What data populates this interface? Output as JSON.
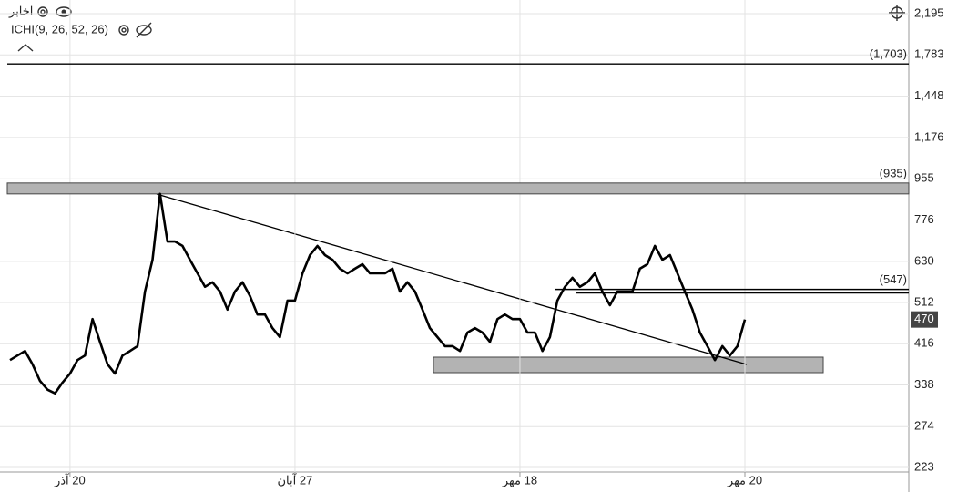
{
  "symbol": "اخابر",
  "indicator": "ICHI(9, 26, 52, 26)",
  "chart_data": {
    "type": "line",
    "log_scale": true,
    "grid": true,
    "categories": [
      null,
      null,
      null,
      null,
      null,
      null,
      null,
      null,
      "20 آذر",
      null,
      null,
      null,
      null,
      null,
      null,
      null,
      null,
      null,
      null,
      null,
      null,
      null,
      null,
      null,
      null,
      null,
      null,
      null,
      null,
      null,
      null,
      null,
      null,
      null,
      null,
      null,
      null,
      null,
      "27 آبان",
      null,
      null,
      null,
      null,
      null,
      null,
      null,
      null,
      null,
      null,
      null,
      null,
      null,
      null,
      null,
      null,
      null,
      null,
      null,
      null,
      null,
      null,
      null,
      null,
      null,
      null,
      null,
      null,
      null,
      "18 مهر",
      null,
      null,
      null,
      null,
      null,
      null,
      null,
      null,
      null,
      null,
      null,
      null,
      null,
      null,
      null,
      null,
      null,
      null,
      null,
      null,
      null,
      null,
      null,
      null,
      null,
      null,
      null,
      null,
      null,
      "20 مهر"
    ],
    "series": [
      {
        "color": "#000000",
        "values": [
          383,
          392,
          401,
          375,
          345,
          330,
          324,
          342,
          358,
          383,
          392,
          471,
          420,
          375,
          358,
          392,
          401,
          411,
          541,
          635,
          885,
          696,
          696,
          681,
          635,
          593,
          554,
          567,
          541,
          494,
          541,
          567,
          529,
          482,
          482,
          450,
          430,
          517,
          517,
          593,
          650,
          681,
          650,
          635,
          607,
          593,
          607,
          621,
          593,
          593,
          593,
          607,
          541,
          567,
          541,
          494,
          450,
          430,
          411,
          411,
          401,
          440,
          450,
          440,
          420,
          471,
          482,
          471,
          471,
          440,
          440,
          401,
          430,
          517,
          554,
          580,
          554,
          567,
          593,
          541,
          505,
          541,
          541,
          541,
          607,
          621,
          681,
          635,
          650,
          593,
          541,
          494,
          440,
          411,
          383,
          411,
          392,
          411,
          470
        ]
      }
    ],
    "ylim": [
      217,
      2351
    ],
    "yticks": [
      {
        "value": 2195,
        "label": "2,195"
      },
      {
        "value": 1783,
        "label": "1,783"
      },
      {
        "value": 1448,
        "label": "1,448"
      },
      {
        "value": 1176,
        "label": "1,176"
      },
      955,
      776,
      630,
      512,
      416,
      338,
      274,
      223
    ],
    "levels": [
      {
        "value": 1703,
        "label": "(1,703)"
      },
      {
        "value": 935,
        "label": "(935)"
      },
      {
        "value": 547,
        "label": "(547)"
      }
    ]
  }
}
